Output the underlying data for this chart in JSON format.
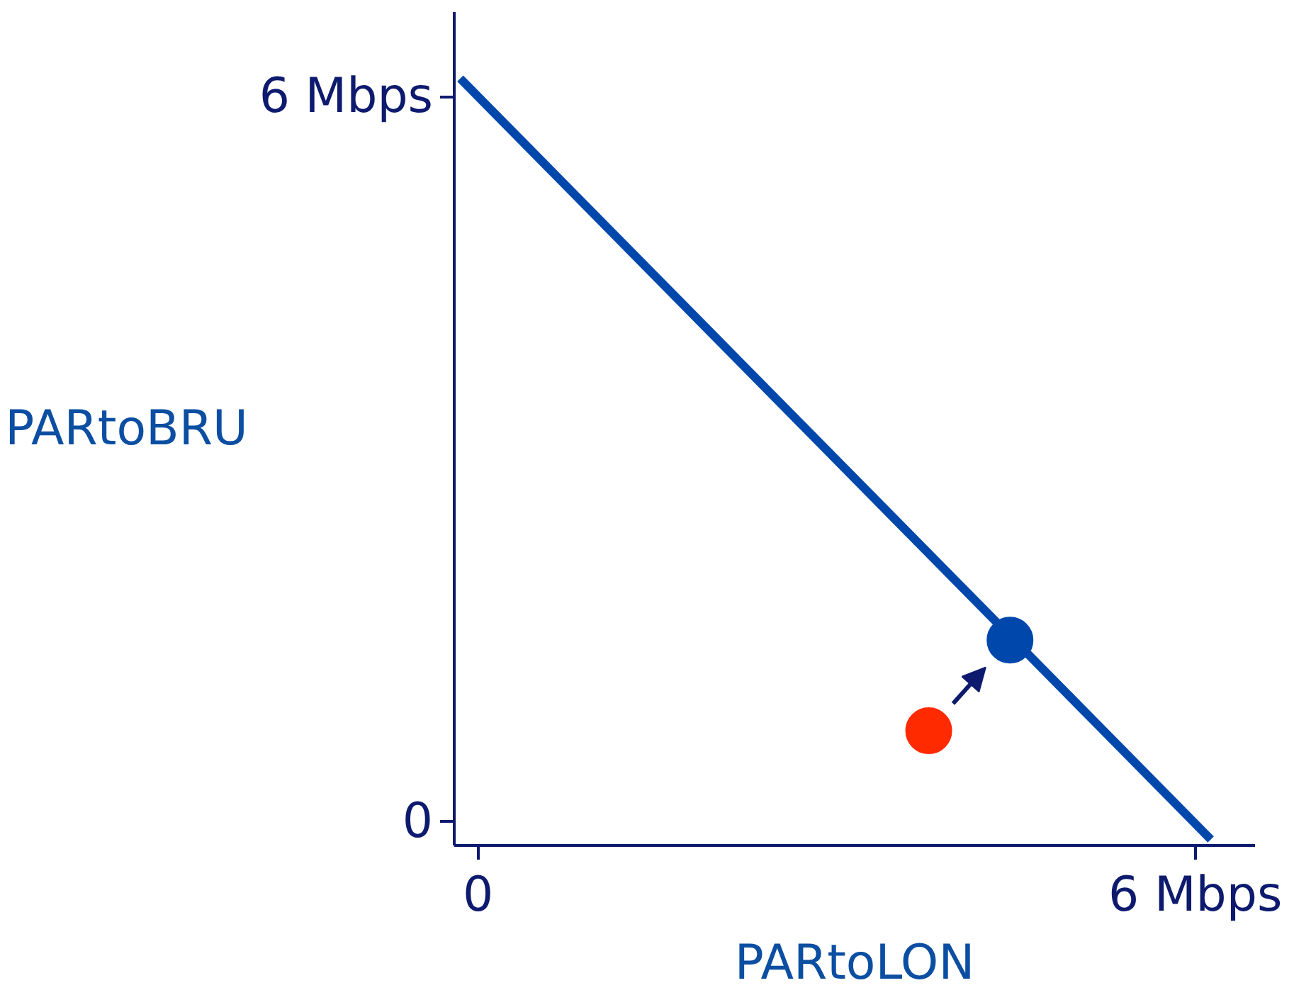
{
  "chart_data": {
    "type": "scatter",
    "xlabel": "PARtoLON",
    "ylabel": "PARtoBRU",
    "xlim": [
      -0.2,
      6.5
    ],
    "ylim": [
      -0.2,
      6.7
    ],
    "xticks": [
      {
        "value": 0,
        "label": "0"
      },
      {
        "value": 6,
        "label": "6 Mbps"
      }
    ],
    "yticks": [
      {
        "value": 0,
        "label": "0"
      },
      {
        "value": 6,
        "label": "6 Mbps"
      }
    ],
    "grid": false,
    "marker": "circle",
    "series": [
      {
        "type": "line",
        "marker": "none",
        "color": "#0047ab",
        "x": [
          -0.15,
          6.13
        ],
        "values": [
          6.15,
          -0.15
        ]
      },
      {
        "color": "#ff2a00",
        "x": [
          3.77
        ],
        "values": [
          0.75
        ]
      },
      {
        "color": "#0047ab",
        "x": [
          4.45
        ],
        "values": [
          1.5
        ]
      }
    ]
  }
}
